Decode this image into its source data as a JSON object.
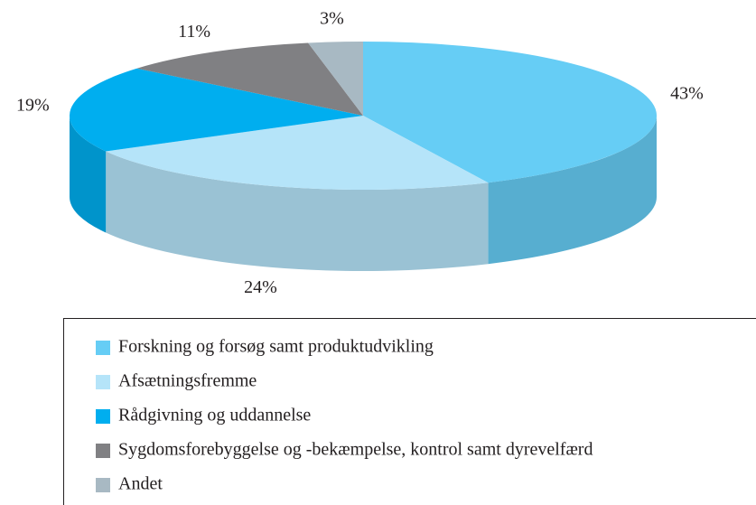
{
  "chart_data": {
    "type": "pie3d",
    "categories": [
      "Forskning og forsøg samt produktudvikling",
      "Afsætningsfremme",
      "Rådgivning og uddannelse",
      "Sygdomsforebyggelse og -bekæmpelse, kontrol samt dyrevelfærd",
      "Andet"
    ],
    "values": [
      43,
      24,
      19,
      11,
      3
    ],
    "value_labels": [
      "43%",
      "24%",
      "19%",
      "11%",
      "3%"
    ],
    "colors": [
      "#66cdf5",
      "#b5e4f9",
      "#00aeef",
      "#808083",
      "#a8b9c3"
    ],
    "legend": "bottom"
  }
}
